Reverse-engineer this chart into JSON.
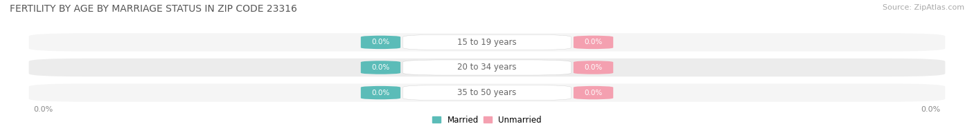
{
  "title": "FERTILITY BY AGE BY MARRIAGE STATUS IN ZIP CODE 23316",
  "source": "Source: ZipAtlas.com",
  "categories": [
    "15 to 19 years",
    "20 to 34 years",
    "35 to 50 years"
  ],
  "married_values": [
    0.0,
    0.0,
    0.0
  ],
  "unmarried_values": [
    0.0,
    0.0,
    0.0
  ],
  "married_color": "#5bbcb8",
  "unmarried_color": "#f4a0b0",
  "row_bg_color_odd": "#f5f5f5",
  "row_bg_color_even": "#ececec",
  "center_label_color": "#666666",
  "value_label_color": "#ffffff",
  "unmarried_value_label_color": "#e87a95",
  "axis_label_left": "0.0%",
  "axis_label_right": "0.0%",
  "figsize": [
    14.06,
    1.96
  ],
  "dpi": 100,
  "title_fontsize": 10,
  "source_fontsize": 8,
  "category_fontsize": 8.5,
  "value_fontsize": 7.5,
  "legend_fontsize": 8.5,
  "axis_tick_fontsize": 8
}
